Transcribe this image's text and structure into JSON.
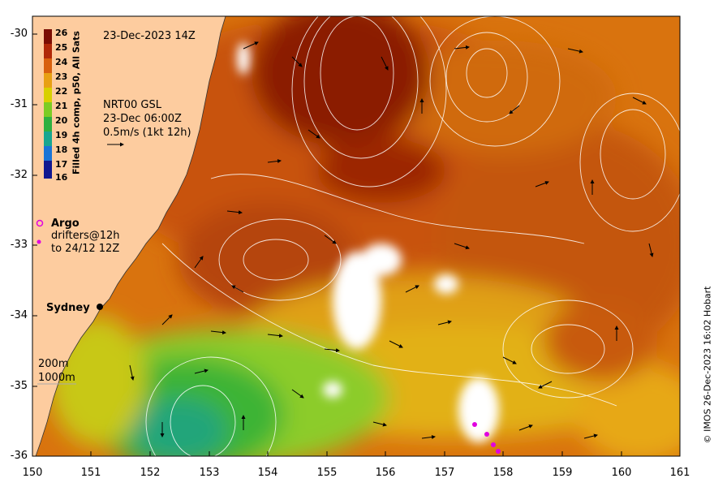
{
  "timestamp_label": "23-Dec-2023 14Z",
  "colorbar": {
    "title": "Filled 4h comp, p50, All Sats",
    "ticks": [
      "26",
      "25",
      "24",
      "23",
      "22",
      "21",
      "20",
      "19",
      "18",
      "17",
      "16"
    ]
  },
  "current_info": {
    "line1": "NRT00 GSL",
    "line2": "23-Dec 06:00Z",
    "line3": "0.5m/s (1kt 12h)"
  },
  "legend": {
    "argo": "Argo",
    "drifters_line1": "drifters@12h",
    "drifters_line2": "to 24/12 12Z",
    "isobath_200": "200m",
    "isobath_1000": "1000m"
  },
  "city": "Sydney",
  "credit": "© IMOS 26-Dec-2023 16:02 Hobart",
  "axes": {
    "lat_ticks": [
      "-30",
      "-31",
      "-32",
      "-33",
      "-34",
      "-35",
      "-36"
    ],
    "lon_ticks": [
      "150",
      "151",
      "152",
      "153",
      "154",
      "155",
      "156",
      "157",
      "158",
      "159",
      "160",
      "161"
    ]
  },
  "colors": {
    "land": "#fdcc9f",
    "warm_core": "#8b1a05",
    "mid": "#c85f0d",
    "orange": "#e68a10",
    "yellow": "#d6c800",
    "green": "#4fbd2c",
    "teal": "#1aa68a",
    "cloud": "#ffffff",
    "argo": "#e000e0"
  }
}
